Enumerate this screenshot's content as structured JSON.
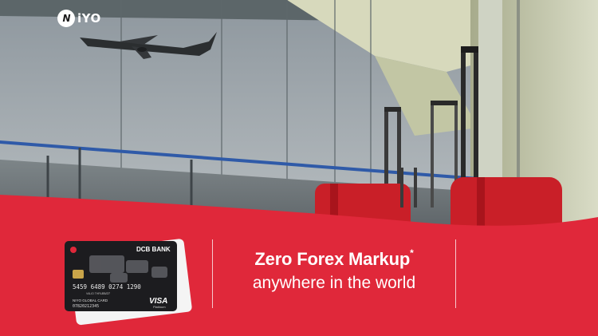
{
  "brand": {
    "name": "iYO",
    "mark": "N"
  },
  "card": {
    "bank": "DCB BANK",
    "number": "5459 6489 0274 1290",
    "valid_label": "VALID THRU",
    "expiry": "05/27",
    "card_name": "NIYO GLOBAL CARD",
    "card_id": "07820212345",
    "network": "VISA",
    "tier": "Platinum",
    "chip_symbol": "N"
  },
  "headline": {
    "line1": "Zero Forex Markup",
    "asterisk": "*",
    "line2": "anywhere in the world"
  },
  "colors": {
    "brand_red": "#e0283a",
    "card_black": "#1c1c1f"
  }
}
